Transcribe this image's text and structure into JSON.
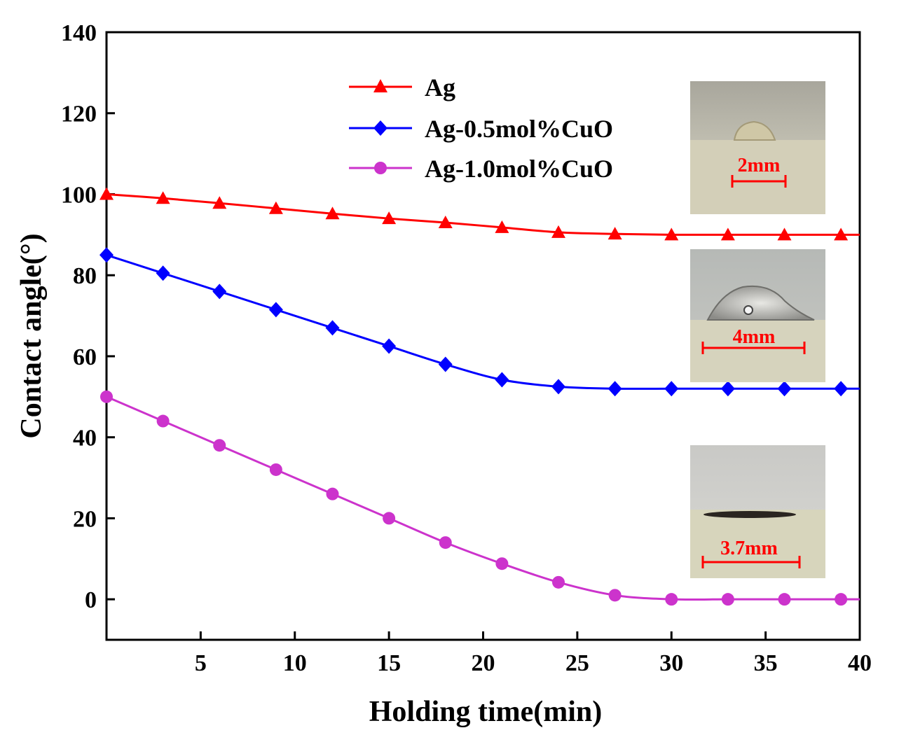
{
  "chart_data": {
    "type": "line",
    "title": "",
    "xlabel": "Holding time(min)",
    "ylabel": "Contact angle(°)",
    "xlim": [
      0,
      40
    ],
    "ylim": [
      -10,
      140
    ],
    "xticks": [
      5,
      10,
      15,
      20,
      25,
      30,
      35,
      40
    ],
    "yticks": [
      0,
      20,
      40,
      60,
      80,
      100,
      120,
      140
    ],
    "legend_position": "top-center",
    "series": [
      {
        "name": "Ag",
        "color": "#ff0000",
        "marker": "triangle",
        "x": [
          0,
          3,
          6,
          9,
          12,
          15,
          18,
          21,
          24,
          27,
          30,
          33,
          36,
          39
        ],
        "y": [
          100,
          99,
          97.8,
          96.5,
          95.2,
          94,
          93,
          91.8,
          90.6,
          90.2,
          90,
          90,
          90,
          90
        ]
      },
      {
        "name": "Ag-0.5mol%CuO",
        "color": "#0000ff",
        "marker": "diamond",
        "x": [
          0,
          3,
          6,
          9,
          12,
          15,
          18,
          21,
          24,
          27,
          30,
          33,
          36,
          39
        ],
        "y": [
          85,
          80.5,
          76,
          71.5,
          67,
          62.5,
          58,
          54.2,
          52.5,
          52,
          52,
          52,
          52,
          52
        ]
      },
      {
        "name": "Ag-1.0mol%CuO",
        "color": "#cc33cc",
        "marker": "circle",
        "x": [
          0,
          3,
          6,
          9,
          12,
          15,
          18,
          21,
          24,
          27,
          30,
          33,
          36,
          39
        ],
        "y": [
          50,
          44,
          38,
          32,
          26,
          20,
          14,
          8.8,
          4.2,
          1,
          0,
          0,
          0,
          0
        ]
      }
    ],
    "insets": [
      {
        "series": "Ag",
        "scale_label": "2mm"
      },
      {
        "series": "Ag-0.5mol%CuO",
        "scale_label": "4mm"
      },
      {
        "series": "Ag-1.0mol%CuO",
        "scale_label": "3.7mm"
      }
    ]
  }
}
